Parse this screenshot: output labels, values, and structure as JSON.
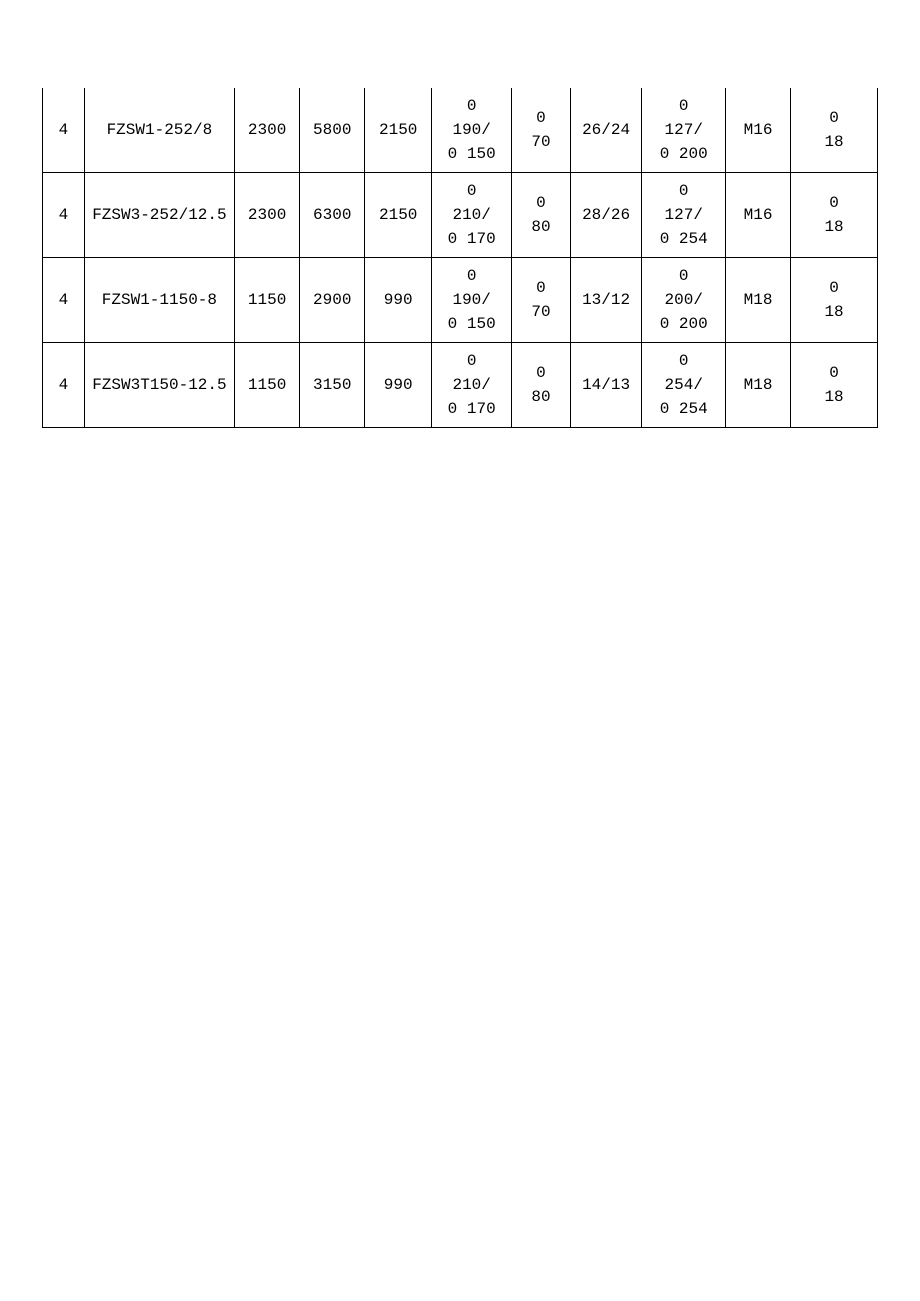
{
  "table": {
    "background_color": "#ffffff",
    "border_color": "#000000",
    "text_color": "#000000",
    "font_size": 16,
    "column_widths_pct": [
      5.0,
      18.0,
      7.8,
      7.8,
      8.0,
      9.6,
      7.0,
      8.6,
      10.0,
      7.8,
      10.4
    ],
    "rows": [
      {
        "vals": [
          "4",
          "FZSW1-252/8",
          "2300",
          "5800",
          "2150",
          "0\n190/\n0 150",
          "0\n70",
          "26/24",
          "0\n127/\n0 200",
          "M16",
          "0\n18"
        ]
      },
      {
        "vals": [
          "4",
          "FZSW3-252/12.5",
          "2300",
          "6300",
          "2150",
          "0\n210/\n0 170",
          "0\n80",
          "28/26",
          "0\n127/\n0 254",
          "M16",
          "0\n18"
        ]
      },
      {
        "vals": [
          "4",
          "FZSW1-1150-8",
          "1150",
          "2900",
          "990",
          "0\n190/\n0 150",
          "0\n70",
          "13/12",
          "0\n200/\n0 200",
          "M18",
          "0\n18"
        ]
      },
      {
        "vals": [
          "4",
          "FZSW3T150-12.5",
          "1150",
          "3150",
          "990",
          "0\n210/\n0 170",
          "0\n80",
          "14/13",
          "0\n254/\n0 254",
          "M18",
          "0\n18"
        ]
      }
    ]
  }
}
